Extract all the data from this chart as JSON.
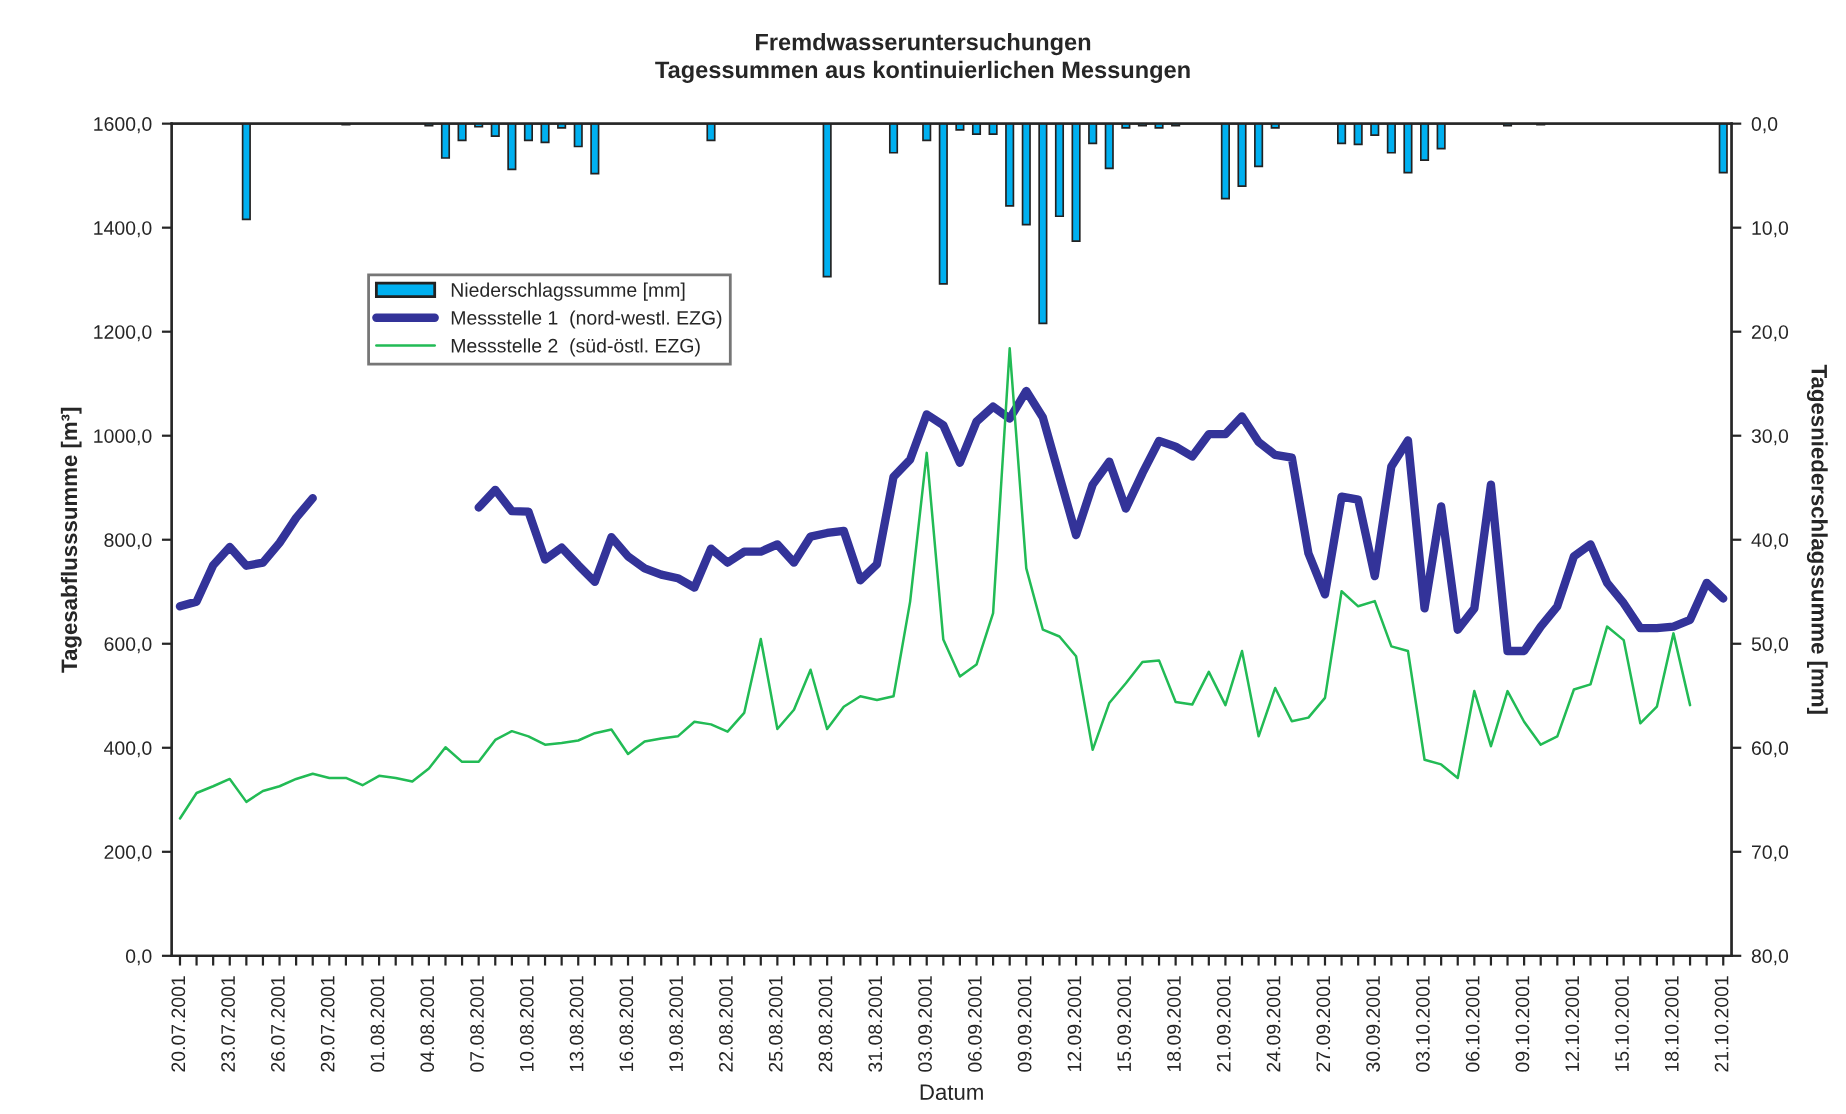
{
  "chart_data": {
    "type": "bar",
    "title": "Fremdwasseruntersuchungen",
    "subtitle": "Tagessummen aus kontinuierlichen Messungen",
    "xlabel": "Datum",
    "ylabel": "Tagesabflusssumme [m³]",
    "y2label": "Tagesniederschlagssumme [mm]",
    "categories": [
      "20.07.2001",
      null,
      null,
      "23.07.2001",
      null,
      null,
      "26.07.2001",
      null,
      null,
      "29.07.2001",
      null,
      null,
      "01.08.2001",
      null,
      null,
      "04.08.2001",
      null,
      null,
      "07.08.2001",
      null,
      null,
      "10.08.2001",
      null,
      null,
      "13.08.2001",
      null,
      null,
      "16.08.2001",
      null,
      null,
      "19.08.2001",
      null,
      null,
      "22.08.2001",
      null,
      null,
      "25.08.2001",
      null,
      null,
      "28.08.2001",
      null,
      null,
      "31.08.2001",
      null,
      null,
      "03.09.2001",
      null,
      null,
      "06.09.2001",
      null,
      null,
      "09.09.2001",
      null,
      null,
      "12.09.2001",
      null,
      null,
      "15.09.2001",
      null,
      null,
      "18.09.2001",
      null,
      null,
      "21.09.2001",
      null,
      null,
      "24.09.2001",
      null,
      null,
      "27.09.2001",
      null,
      null,
      "30.09.2001",
      null,
      null,
      "03.10.2001",
      null,
      null,
      "06.10.2001",
      null,
      null,
      "09.10.2001",
      null,
      null,
      "12.10.2001",
      null,
      null,
      "15.10.2001",
      null,
      null,
      "18.10.2001",
      null,
      null,
      "21.10.2001"
    ],
    "series": [
      {
        "name": "Niederschlagssumme [mm]",
        "axis": "y2",
        "color": "#00b0f0",
        "values": [
          0,
          0,
          0,
          0,
          9.2,
          0,
          0,
          0,
          0,
          0,
          0.1,
          0,
          0,
          0,
          0,
          0.2,
          3.3,
          1.6,
          0.3,
          1.2,
          4.4,
          1.6,
          1.8,
          0.4,
          2.2,
          4.8,
          0,
          0,
          0,
          0,
          0,
          0,
          1.6,
          0,
          0,
          0,
          0,
          0,
          0,
          14.7,
          0,
          0,
          0,
          2.8,
          0,
          1.6,
          15.4,
          0.6,
          1.0,
          1.0,
          7.9,
          9.7,
          19.2,
          8.9,
          11.3,
          1.9,
          4.3,
          0.4,
          0.2,
          0.4,
          0.2,
          0,
          0,
          7.2,
          6.0,
          4.1,
          0.4,
          0,
          0,
          0,
          1.9,
          2.0,
          1.1,
          2.8,
          4.7,
          3.5,
          2.4,
          0,
          0,
          0,
          0.2,
          0,
          0.1,
          0,
          0,
          0,
          0,
          0,
          0,
          0,
          0,
          0,
          0,
          4.7
        ]
      },
      {
        "name": "Messstelle 1  (nord-westl. EZG)",
        "type": "line",
        "color": "#333399",
        "values": [
          672,
          681,
          751,
          786,
          750,
          756,
          794,
          842,
          880,
          null,
          null,
          null,
          null,
          null,
          null,
          null,
          null,
          null,
          862,
          896,
          855,
          854,
          762,
          785,
          751,
          719,
          805,
          768,
          745,
          733,
          726,
          708,
          783,
          756,
          777,
          777,
          791,
          756,
          806,
          813,
          817,
          722,
          753,
          921,
          954,
          1041,
          1020,
          948,
          1027,
          1056,
          1033,
          1086,
          1035,
          922,
          809,
          906,
          950,
          860,
          928,
          990,
          979,
          960,
          1003,
          1003,
          1037,
          988,
          963,
          958,
          774,
          695,
          883,
          877,
          730,
          941,
          991,
          668,
          864,
          627,
          668,
          906,
          586,
          586,
          633,
          672,
          768,
          791,
          717,
          678,
          630,
          630,
          633,
          646,
          717,
          687
        ]
      },
      {
        "name": "Messstelle 2  (süd-östl. EZG)",
        "type": "line",
        "color": "#22bb55",
        "values": [
          264,
          313,
          326,
          340,
          296,
          317,
          326,
          340,
          350,
          342,
          342,
          328,
          346,
          342,
          335,
          360,
          401,
          373,
          373,
          415,
          432,
          422,
          406,
          409,
          414,
          428,
          435,
          388,
          412,
          418,
          422,
          450,
          445,
          431,
          467,
          609,
          436,
          473,
          550,
          436,
          479,
          499,
          492,
          499,
          681,
          967,
          608,
          537,
          560,
          659,
          1168,
          745,
          627,
          614,
          576,
          396,
          486,
          524,
          565,
          568,
          488,
          483,
          546,
          482,
          586,
          422,
          515,
          451,
          458,
          496,
          701,
          672,
          682,
          595,
          586,
          377,
          368,
          342,
          509,
          403,
          509,
          450,
          406,
          422,
          512,
          522,
          633,
          607,
          447,
          479,
          620,
          482,
          null,
          null
        ]
      }
    ],
    "ylim": [
      0,
      1600
    ],
    "yticks": [
      {
        "value": 0,
        "label": "0,0"
      },
      {
        "value": 200,
        "label": "200,0"
      },
      {
        "value": 400,
        "label": "400,0"
      },
      {
        "value": 600,
        "label": "600,0"
      },
      {
        "value": 800,
        "label": "800,0"
      },
      {
        "value": 1000,
        "label": "1000,0"
      },
      {
        "value": 1200,
        "label": "1200,0"
      },
      {
        "value": 1400,
        "label": "1400,0"
      },
      {
        "value": 1600,
        "label": "1600,0"
      }
    ],
    "y2lim": [
      80,
      0
    ],
    "y2ticks": [
      {
        "value": 0,
        "label": "0,0"
      },
      {
        "value": 10,
        "label": "10,0"
      },
      {
        "value": 20,
        "label": "20,0"
      },
      {
        "value": 30,
        "label": "30,0"
      },
      {
        "value": 40,
        "label": "40,0"
      },
      {
        "value": 50,
        "label": "50,0"
      },
      {
        "value": 60,
        "label": "60,0"
      },
      {
        "value": 70,
        "label": "70,0"
      },
      {
        "value": 80,
        "label": "80,0"
      }
    ],
    "legend": "top left",
    "marker": "none",
    "line_style": "solid"
  }
}
